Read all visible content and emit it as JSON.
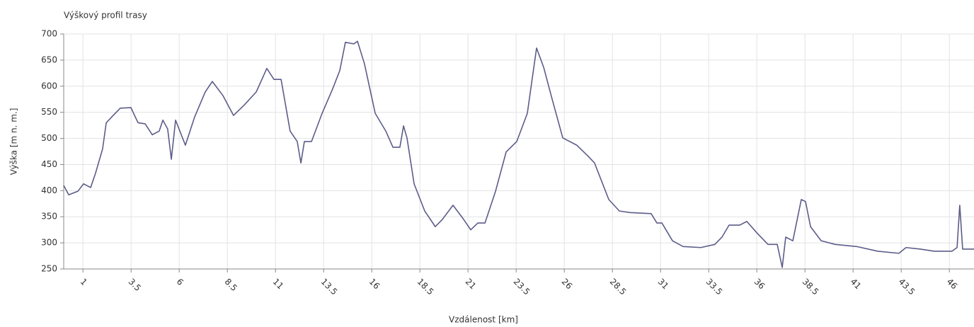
{
  "chart_data": {
    "type": "line",
    "title": "Výškový profil trasy",
    "x_label": "Vzdálenost [km]",
    "y_label": "Výška [m n. m.]",
    "x": [
      0,
      0.26,
      0.74,
      1.03,
      1.4,
      1.65,
      2.02,
      2.21,
      2.57,
      2.94,
      3.49,
      3.86,
      4.23,
      4.6,
      4.96,
      5.15,
      5.4,
      5.59,
      5.81,
      6.32,
      6.8,
      7.35,
      7.72,
      8.27,
      8.82,
      9.38,
      10.0,
      10.55,
      10.92,
      11.29,
      11.76,
      12.13,
      12.32,
      12.5,
      12.87,
      13.42,
      13.97,
      14.34,
      14.63,
      15.07,
      15.26,
      15.62,
      16.18,
      16.73,
      17.1,
      17.46,
      17.65,
      17.83,
      18.2,
      18.75,
      19.3,
      19.67,
      20.22,
      20.77,
      21.14,
      21.51,
      21.88,
      22.43,
      22.98,
      23.53,
      24.08,
      24.34,
      24.56,
      24.93,
      25.37,
      25.92,
      26.65,
      27.21,
      27.57,
      28.31,
      28.86,
      29.41,
      30.51,
      30.81,
      31.07,
      31.62,
      32.17,
      33.09,
      33.82,
      34.19,
      34.56,
      35.11,
      35.48,
      36.03,
      36.58,
      37.06,
      37.32,
      37.5,
      37.87,
      38.31,
      38.53,
      38.79,
      39.34,
      40.07,
      41.18,
      42.28,
      43.38,
      43.75,
      44.49,
      45.22,
      46.14,
      46.4,
      46.54,
      46.69,
      47.28
    ],
    "series": [
      {
        "color": "#5c5c8a",
        "values": [
          410,
          392,
          399,
          413,
          406,
          433,
          480,
          530,
          544,
          558,
          559,
          530,
          528,
          507,
          514,
          535,
          518,
          460,
          535,
          487,
          541,
          589,
          609,
          582,
          544,
          564,
          589,
          634,
          613,
          613,
          514,
          494,
          453,
          494,
          494,
          548,
          595,
          630,
          684,
          681,
          686,
          643,
          548,
          514,
          483,
          483,
          524,
          501,
          413,
          361,
          331,
          345,
          372,
          345,
          325,
          338,
          338,
          399,
          474,
          494,
          548,
          616,
          673,
          636,
          575,
          501,
          487,
          467,
          453,
          383,
          361,
          358,
          356,
          338,
          338,
          304,
          293,
          291,
          297,
          311,
          334,
          334,
          341,
          318,
          297,
          297,
          253,
          311,
          304,
          383,
          379,
          331,
          304,
          297,
          293,
          284,
          280,
          291,
          288,
          284,
          284,
          291,
          372,
          288,
          288
        ]
      }
    ],
    "xlim": [
      0,
      47.28
    ],
    "ylim": [
      250,
      700
    ],
    "xticks": [
      1,
      3.5,
      6,
      8.5,
      11,
      13.5,
      16,
      18.5,
      21,
      23.5,
      26,
      28.5,
      31,
      33.5,
      36,
      38.5,
      41,
      43.5,
      46
    ],
    "yticks": [
      250,
      300,
      350,
      400,
      450,
      500,
      550,
      600,
      650,
      700
    ],
    "grid": true
  }
}
